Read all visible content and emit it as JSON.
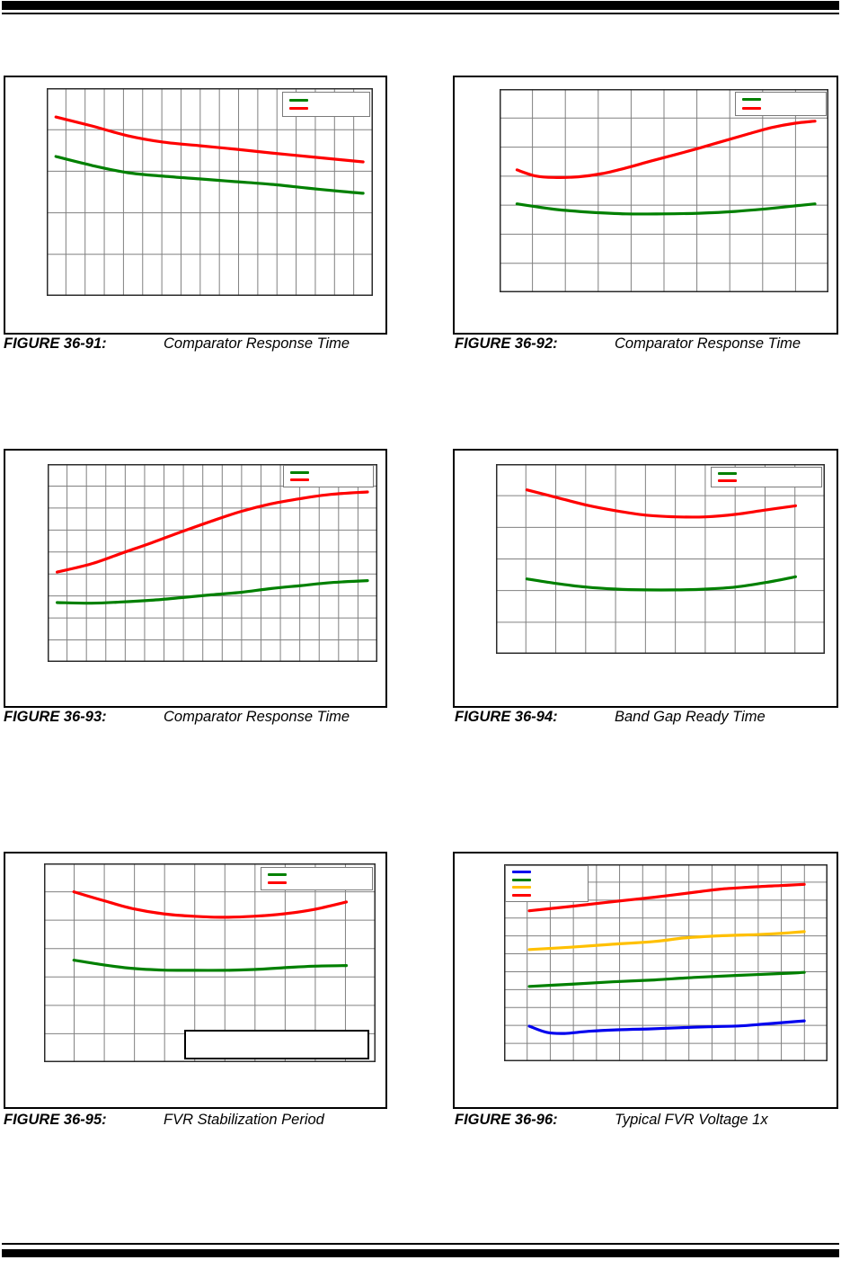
{
  "page": {
    "kind": "datasheet-characteristics-page",
    "background": "#ffffff"
  },
  "colors": {
    "red": "#ff0000",
    "green": "#008000",
    "blue": "#0000ee",
    "yellow": "#ffc000",
    "grid": "#808080",
    "plot_border": "#2b2b2b",
    "frame": "#000000",
    "rule": "#000000"
  },
  "figures": [
    {
      "label": "FIGURE 36-91:",
      "title": "Comparator Response Time",
      "chart_data": {
        "type": "line",
        "title": "",
        "xlabel": "",
        "ylabel": "",
        "axis_tick_labels_visible": false,
        "grid": {
          "cols": 17,
          "rows": 5,
          "visible": true
        },
        "legend": {
          "position": "top-right",
          "entries": [
            {
              "series": "green",
              "color": "#008000",
              "label": ""
            },
            {
              "series": "red",
              "color": "#ff0000",
              "label": ""
            }
          ]
        },
        "points_format": "normalized-fraction-of-plot, y measured downward from top",
        "series": [
          {
            "name": "green",
            "color": "#008000",
            "points": [
              [
                0.028,
                0.329
              ],
              [
                0.138,
                0.372
              ],
              [
                0.248,
                0.407
              ],
              [
                0.358,
                0.424
              ],
              [
                0.468,
                0.437
              ],
              [
                0.579,
                0.45
              ],
              [
                0.689,
                0.463
              ],
              [
                0.799,
                0.481
              ],
              [
                0.909,
                0.498
              ],
              [
                0.97,
                0.506
              ]
            ]
          },
          {
            "name": "red",
            "color": "#ff0000",
            "points": [
              [
                0.028,
                0.139
              ],
              [
                0.138,
                0.182
              ],
              [
                0.248,
                0.229
              ],
              [
                0.358,
                0.26
              ],
              [
                0.468,
                0.277
              ],
              [
                0.579,
                0.294
              ],
              [
                0.689,
                0.312
              ],
              [
                0.799,
                0.329
              ],
              [
                0.909,
                0.346
              ],
              [
                0.97,
                0.355
              ]
            ]
          }
        ]
      }
    },
    {
      "label": "FIGURE 36-92:",
      "title": "Comparator Response Time",
      "chart_data": {
        "type": "line",
        "title": "",
        "xlabel": "",
        "ylabel": "",
        "axis_tick_labels_visible": false,
        "grid": {
          "cols": 10,
          "rows": 7,
          "visible": true
        },
        "legend": {
          "position": "top-right",
          "entries": [
            {
              "series": "green",
              "color": "#008000",
              "label": ""
            },
            {
              "series": "red",
              "color": "#ff0000",
              "label": ""
            }
          ]
        },
        "points_format": "normalized-fraction-of-plot, y measured downward from top",
        "series": [
          {
            "name": "green",
            "color": "#008000",
            "points": [
              [
                0.053,
                0.565
              ],
              [
                0.165,
                0.591
              ],
              [
                0.275,
                0.606
              ],
              [
                0.385,
                0.614
              ],
              [
                0.495,
                0.614
              ],
              [
                0.606,
                0.611
              ],
              [
                0.716,
                0.602
              ],
              [
                0.826,
                0.587
              ],
              [
                0.899,
                0.575
              ],
              [
                0.959,
                0.565
              ]
            ]
          },
          {
            "name": "red",
            "color": "#ff0000",
            "points": [
              [
                0.053,
                0.398
              ],
              [
                0.11,
                0.428
              ],
              [
                0.165,
                0.435
              ],
              [
                0.239,
                0.432
              ],
              [
                0.312,
                0.416
              ],
              [
                0.385,
                0.388
              ],
              [
                0.459,
                0.355
              ],
              [
                0.532,
                0.324
              ],
              [
                0.606,
                0.291
              ],
              [
                0.679,
                0.257
              ],
              [
                0.752,
                0.223
              ],
              [
                0.826,
                0.19
              ],
              [
                0.899,
                0.168
              ],
              [
                0.959,
                0.158
              ]
            ]
          }
        ]
      }
    },
    {
      "label": "FIGURE 36-93:",
      "title": "Comparator Response Time",
      "chart_data": {
        "type": "line",
        "title": "",
        "xlabel": "",
        "ylabel": "",
        "axis_tick_labels_visible": false,
        "grid": {
          "cols": 17,
          "rows": 9,
          "visible": true
        },
        "legend": {
          "position": "top-right",
          "entries": [
            {
              "series": "green",
              "color": "#008000",
              "label": ""
            },
            {
              "series": "red",
              "color": "#ff0000",
              "label": ""
            }
          ]
        },
        "points_format": "normalized-fraction-of-plot, y measured downward from top",
        "series": [
          {
            "name": "green",
            "color": "#008000",
            "points": [
              [
                0.029,
                0.7
              ],
              [
                0.133,
                0.703
              ],
              [
                0.224,
                0.697
              ],
              [
                0.315,
                0.688
              ],
              [
                0.406,
                0.675
              ],
              [
                0.496,
                0.661
              ],
              [
                0.587,
                0.648
              ],
              [
                0.678,
                0.629
              ],
              [
                0.769,
                0.614
              ],
              [
                0.859,
                0.599
              ],
              [
                0.97,
                0.589
              ]
            ]
          },
          {
            "name": "red",
            "color": "#ff0000",
            "points": [
              [
                0.029,
                0.546
              ],
              [
                0.133,
                0.504
              ],
              [
                0.224,
                0.451
              ],
              [
                0.315,
                0.398
              ],
              [
                0.406,
                0.342
              ],
              [
                0.496,
                0.289
              ],
              [
                0.587,
                0.239
              ],
              [
                0.678,
                0.201
              ],
              [
                0.769,
                0.174
              ],
              [
                0.859,
                0.153
              ],
              [
                0.97,
                0.141
              ]
            ]
          }
        ]
      }
    },
    {
      "label": "FIGURE 36-94:",
      "title": "Band Gap Ready Time",
      "chart_data": {
        "type": "line",
        "title": "",
        "xlabel": "",
        "ylabel": "",
        "axis_tick_labels_visible": false,
        "grid": {
          "cols": 11,
          "rows": 6,
          "visible": true
        },
        "legend": {
          "position": "top-right",
          "entries": [
            {
              "series": "green",
              "color": "#008000",
              "label": ""
            },
            {
              "series": "red",
              "color": "#ff0000",
              "label": ""
            }
          ]
        },
        "points_format": "normalized-fraction-of-plot, y measured downward from top",
        "series": [
          {
            "name": "green",
            "color": "#008000",
            "points": [
              [
                0.094,
                0.605
              ],
              [
                0.182,
                0.629
              ],
              [
                0.273,
                0.648
              ],
              [
                0.365,
                0.659
              ],
              [
                0.456,
                0.663
              ],
              [
                0.547,
                0.663
              ],
              [
                0.638,
                0.659
              ],
              [
                0.729,
                0.648
              ],
              [
                0.82,
                0.624
              ],
              [
                0.911,
                0.594
              ]
            ]
          },
          {
            "name": "red",
            "color": "#ff0000",
            "points": [
              [
                0.094,
                0.136
              ],
              [
                0.182,
                0.175
              ],
              [
                0.273,
                0.215
              ],
              [
                0.365,
                0.246
              ],
              [
                0.456,
                0.269
              ],
              [
                0.547,
                0.278
              ],
              [
                0.638,
                0.278
              ],
              [
                0.729,
                0.265
              ],
              [
                0.82,
                0.242
              ],
              [
                0.911,
                0.22
              ]
            ]
          }
        ]
      }
    },
    {
      "label": "FIGURE 36-95:",
      "title": "FVR Stabilization Period",
      "annotation_box": {
        "text": ""
      },
      "chart_data": {
        "type": "line",
        "title": "",
        "xlabel": "",
        "ylabel": "",
        "axis_tick_labels_visible": false,
        "grid": {
          "cols": 11,
          "rows": 7,
          "visible": true
        },
        "legend": {
          "position": "top-right",
          "entries": [
            {
              "series": "green",
              "color": "#008000",
              "label": ""
            },
            {
              "series": "red",
              "color": "#ff0000",
              "label": ""
            }
          ]
        },
        "points_format": "normalized-fraction-of-plot, y measured downward from top",
        "series": [
          {
            "name": "green",
            "color": "#008000",
            "points": [
              [
                0.09,
                0.487
              ],
              [
                0.181,
                0.511
              ],
              [
                0.271,
                0.529
              ],
              [
                0.361,
                0.537
              ],
              [
                0.452,
                0.538
              ],
              [
                0.542,
                0.538
              ],
              [
                0.632,
                0.534
              ],
              [
                0.723,
                0.525
              ],
              [
                0.813,
                0.517
              ],
              [
                0.912,
                0.514
              ]
            ]
          },
          {
            "name": "red",
            "color": "#ff0000",
            "points": [
              [
                0.09,
                0.143
              ],
              [
                0.181,
                0.188
              ],
              [
                0.271,
                0.229
              ],
              [
                0.361,
                0.254
              ],
              [
                0.452,
                0.266
              ],
              [
                0.542,
                0.271
              ],
              [
                0.632,
                0.266
              ],
              [
                0.723,
                0.254
              ],
              [
                0.813,
                0.232
              ],
              [
                0.912,
                0.194
              ]
            ]
          }
        ]
      }
    },
    {
      "label": "FIGURE 36-96:",
      "title": "Typical FVR Voltage 1x",
      "chart_data": {
        "type": "line",
        "title": "",
        "xlabel": "",
        "ylabel": "",
        "axis_tick_labels_visible": false,
        "grid": {
          "cols": 14,
          "rows": 11,
          "visible": true
        },
        "legend": {
          "position": "top-left",
          "entries": [
            {
              "series": "blue",
              "color": "#0000ee",
              "label": ""
            },
            {
              "series": "green",
              "color": "#008000",
              "label": ""
            },
            {
              "series": "yellow",
              "color": "#ffc000",
              "label": ""
            },
            {
              "series": "red",
              "color": "#ff0000",
              "label": ""
            }
          ]
        },
        "points_format": "normalized-fraction-of-plot, y measured downward from top",
        "series": [
          {
            "name": "blue",
            "color": "#0000ee",
            "points": [
              [
                0.078,
                0.822
              ],
              [
                0.131,
                0.853
              ],
              [
                0.187,
                0.859
              ],
              [
                0.261,
                0.848
              ],
              [
                0.354,
                0.84
              ],
              [
                0.446,
                0.836
              ],
              [
                0.539,
                0.83
              ],
              [
                0.631,
                0.825
              ],
              [
                0.724,
                0.821
              ],
              [
                0.815,
                0.81
              ],
              [
                0.928,
                0.795
              ]
            ]
          },
          {
            "name": "green",
            "color": "#008000",
            "points": [
              [
                0.078,
                0.62
              ],
              [
                0.206,
                0.609
              ],
              [
                0.335,
                0.597
              ],
              [
                0.465,
                0.587
              ],
              [
                0.594,
                0.574
              ],
              [
                0.724,
                0.564
              ],
              [
                0.854,
                0.555
              ],
              [
                0.928,
                0.549
              ]
            ]
          },
          {
            "name": "yellow",
            "color": "#ffc000",
            "points": [
              [
                0.078,
                0.433
              ],
              [
                0.206,
                0.421
              ],
              [
                0.335,
                0.406
              ],
              [
                0.465,
                0.392
              ],
              [
                0.557,
                0.374
              ],
              [
                0.669,
                0.363
              ],
              [
                0.78,
                0.357
              ],
              [
                0.854,
                0.351
              ],
              [
                0.928,
                0.342
              ]
            ]
          },
          {
            "name": "red",
            "color": "#ff0000",
            "points": [
              [
                0.078,
                0.236
              ],
              [
                0.206,
                0.214
              ],
              [
                0.335,
                0.19
              ],
              [
                0.465,
                0.167
              ],
              [
                0.594,
                0.141
              ],
              [
                0.669,
                0.126
              ],
              [
                0.761,
                0.116
              ],
              [
                0.854,
                0.108
              ],
              [
                0.928,
                0.102
              ]
            ]
          }
        ]
      }
    }
  ]
}
